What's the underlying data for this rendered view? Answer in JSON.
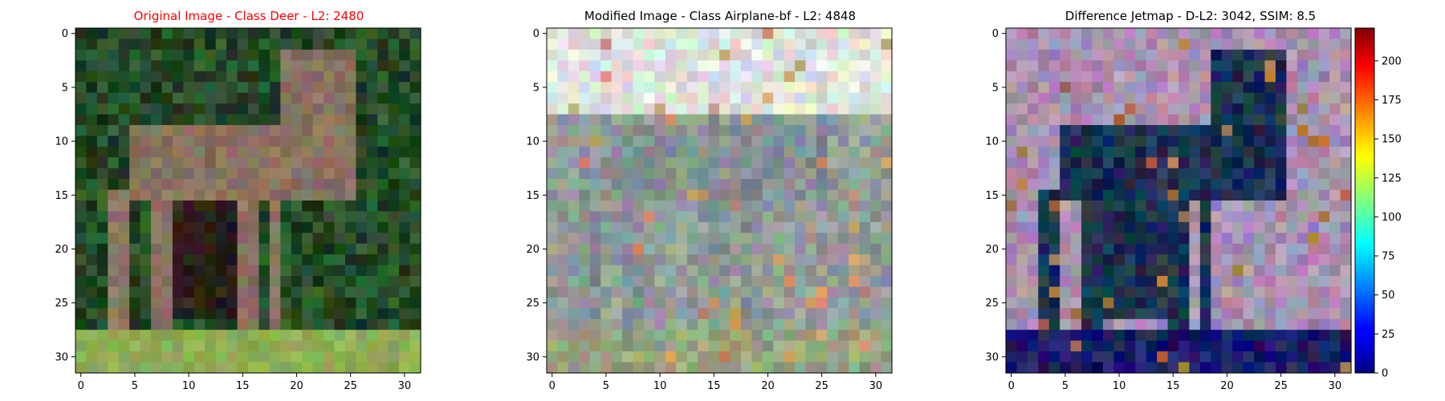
{
  "chart_data": [
    {
      "type": "heatmap",
      "title": "Original Image - Class Deer - L2: 2480",
      "title_color": "#ff0000",
      "xlim": [
        -0.5,
        31.5
      ],
      "ylim": [
        31.5,
        -0.5
      ],
      "xticks": [
        "0",
        "5",
        "10",
        "15",
        "20",
        "25",
        "30"
      ],
      "yticks": [
        "0",
        "5",
        "10",
        "15",
        "20",
        "25",
        "30"
      ],
      "image": "32x32 RGB photo of a deer standing on green grass against dark green foliage",
      "palette": {
        "foliage_dark": "#1c3a1c",
        "foliage_mid": "#2e5a30",
        "deer_body": "#8a7260",
        "deer_shadow": "#2a2018",
        "grass": "#8fae52"
      }
    },
    {
      "type": "heatmap",
      "title": "Modified Image - Class Airplane-bf - L2: 4848",
      "title_color": "#000000",
      "xlim": [
        -0.5,
        31.5
      ],
      "ylim": [
        31.5,
        -0.5
      ],
      "xticks": [
        "0",
        "5",
        "10",
        "15",
        "20",
        "25",
        "30"
      ],
      "yticks": [
        "0",
        "5",
        "10",
        "15",
        "20",
        "25",
        "30"
      ],
      "image": "32x32 RGB image, pale washed-out grey-blue version of the deer scene",
      "palette": {
        "sky": "#dfe3de",
        "mid": "#8f9a96",
        "body": "#7e8c8e",
        "accent": "#c98f60",
        "ground": "#92a07a"
      }
    },
    {
      "type": "heatmap",
      "title": "Difference Jetmap - D-L2: 3042, SSIM: 8.5",
      "title_color": "#000000",
      "xlim": [
        -0.5,
        31.5
      ],
      "ylim": [
        31.5,
        -0.5
      ],
      "xticks": [
        "0",
        "5",
        "10",
        "15",
        "20",
        "25",
        "30"
      ],
      "yticks": [
        "0",
        "5",
        "10",
        "15",
        "20",
        "25",
        "30"
      ],
      "image": "32x32 difference image blended with jet colormap; pinkish-lavender background, dark navy deer silhouette, blue band at bottom",
      "palette": {
        "background": "#a890b0",
        "deer": "#1a3050",
        "bottom_band": "#1a1a66",
        "warm_spot": "#b07040"
      },
      "colorbar": {
        "colormap": "jet",
        "range": [
          0,
          221
        ],
        "ticks": [
          "0",
          "25",
          "50",
          "75",
          "100",
          "125",
          "150",
          "175",
          "200"
        ]
      }
    }
  ]
}
